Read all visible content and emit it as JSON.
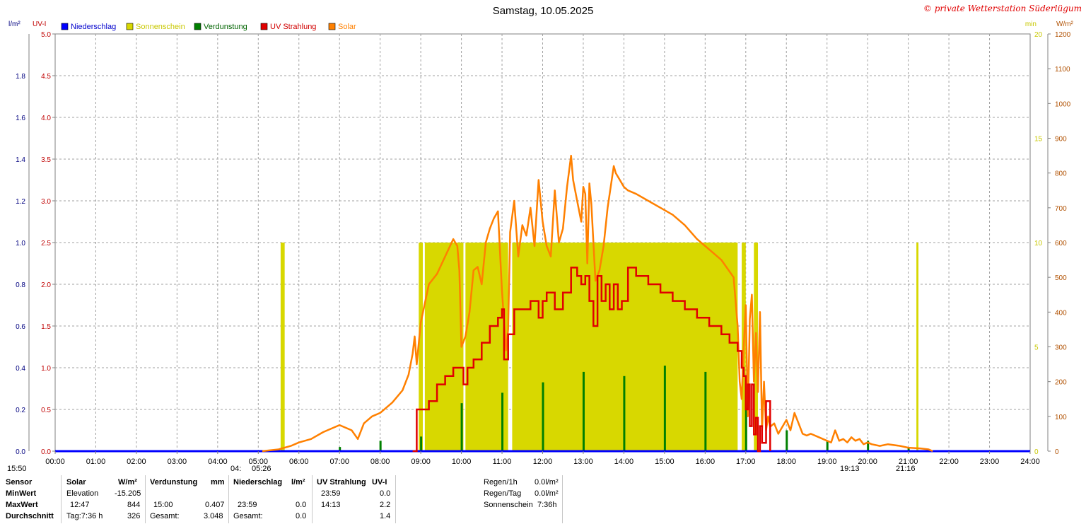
{
  "header": {
    "title": "Samstag, 10.05.2025",
    "copyright": "© private Wetterstation Süderlügum",
    "left_unit_1": "l/m²",
    "left_unit_2": "UV-I",
    "right_unit_1": "min",
    "right_unit_2": "W/m²"
  },
  "legend": [
    {
      "label": "Niederschlag",
      "color": "#0000ff",
      "text_color": "#0000cc"
    },
    {
      "label": "Sonnenschein",
      "color": "#d8d800",
      "text_color": "#c8c800"
    },
    {
      "label": "Verdunstung",
      "color": "#008000",
      "text_color": "#006400"
    },
    {
      "label": "UV Strahlung",
      "color": "#e00000",
      "text_color": "#d00000"
    },
    {
      "label": "Solar",
      "color": "#ff8000",
      "text_color": "#ff8000"
    }
  ],
  "colors": {
    "rain": "#0000ff",
    "sun": "#d8d800",
    "evap": "#008000",
    "uv": "#e00000",
    "solar": "#ff8000",
    "grid": "#a0a0a0",
    "rain_axis": "#000080",
    "uv_axis": "#c00000",
    "min_axis": "#c8c800",
    "solar_axis": "#b05000"
  },
  "chart_data": {
    "type": "line",
    "x_unit": "hour of day",
    "xlim": [
      0,
      24
    ],
    "x_ticks": [
      "00:00",
      "01:00",
      "02:00",
      "03:00",
      "04:00",
      "05:00",
      "06:00",
      "07:00",
      "08:00",
      "09:00",
      "10:00",
      "11:00",
      "12:00",
      "13:00",
      "14:00",
      "15:00",
      "16:00",
      "17:00",
      "18:00",
      "19:00",
      "20:00",
      "21:00",
      "22:00",
      "23:00",
      "24:00"
    ],
    "axes": {
      "rain": {
        "unit": "l/m²",
        "range": [
          0,
          2.0
        ],
        "ticks": [
          "0.0",
          "0.2",
          "0.4",
          "0.6",
          "0.8",
          "1.0",
          "1.2",
          "1.4",
          "1.6",
          "1.8"
        ]
      },
      "uv": {
        "unit": "UV-I",
        "range": [
          0,
          5.0
        ],
        "ticks": [
          "0.0",
          "0.5",
          "1.0",
          "1.5",
          "2.0",
          "2.5",
          "3.0",
          "3.5",
          "4.0",
          "4.5",
          "5.0"
        ]
      },
      "sunshine": {
        "unit": "min",
        "range": [
          0,
          20
        ],
        "ticks": [
          "0",
          "5",
          "10",
          "15",
          "20"
        ]
      },
      "solar": {
        "unit": "W/m²",
        "range": [
          0,
          1200
        ],
        "ticks": [
          "0",
          "100",
          "200",
          "300",
          "400",
          "500",
          "600",
          "700",
          "800",
          "900",
          "1000",
          "1100",
          "1200"
        ]
      }
    },
    "grid": true,
    "legend_position": "top-left",
    "series": [
      {
        "name": "Solar",
        "axis": "solar",
        "x": [
          5.1,
          5.5,
          5.8,
          6.0,
          6.3,
          6.6,
          7.0,
          7.3,
          7.45,
          7.6,
          7.8,
          8.0,
          8.3,
          8.55,
          8.7,
          8.8,
          8.85,
          8.9,
          9.0,
          9.2,
          9.4,
          9.6,
          9.8,
          9.9,
          9.95,
          10.0,
          10.1,
          10.2,
          10.3,
          10.4,
          10.5,
          10.6,
          10.7,
          10.8,
          10.9,
          11.0,
          11.1,
          11.15,
          11.2,
          11.3,
          11.4,
          11.5,
          11.6,
          11.7,
          11.8,
          11.9,
          12.0,
          12.1,
          12.2,
          12.3,
          12.4,
          12.5,
          12.6,
          12.7,
          12.75,
          12.85,
          12.95,
          13.0,
          13.05,
          13.1,
          13.15,
          13.2,
          13.3,
          13.4,
          13.5,
          13.6,
          13.7,
          13.75,
          13.8,
          13.85,
          13.9,
          13.95,
          14.0,
          14.1,
          14.3,
          14.6,
          14.9,
          15.2,
          15.5,
          15.8,
          16.1,
          16.4,
          16.7,
          16.8,
          16.85,
          16.9,
          16.95,
          17.0,
          17.05,
          17.1,
          17.15,
          17.2,
          17.25,
          17.3,
          17.35,
          17.4,
          17.45,
          17.5,
          17.55,
          17.6,
          17.7,
          17.8,
          17.9,
          18.0,
          18.1,
          18.2,
          18.3,
          18.4,
          18.5,
          18.6,
          18.8,
          19.0,
          19.1,
          19.2,
          19.3,
          19.4,
          19.5,
          19.6,
          19.7,
          19.8,
          19.9,
          20.0,
          20.1,
          20.3,
          20.5,
          20.8,
          21.0,
          21.3,
          21.5,
          21.6
        ],
        "y": [
          0,
          5,
          15,
          25,
          35,
          55,
          75,
          60,
          35,
          80,
          100,
          110,
          140,
          175,
          220,
          280,
          330,
          250,
          370,
          480,
          510,
          560,
          610,
          590,
          520,
          300,
          330,
          400,
          520,
          530,
          480,
          600,
          640,
          670,
          690,
          460,
          290,
          350,
          630,
          720,
          560,
          650,
          620,
          700,
          590,
          780,
          660,
          590,
          560,
          750,
          600,
          640,
          760,
          850,
          780,
          720,
          660,
          760,
          740,
          540,
          770,
          710,
          490,
          520,
          590,
          700,
          780,
          820,
          800,
          790,
          780,
          770,
          760,
          750,
          740,
          720,
          700,
          680,
          650,
          610,
          580,
          550,
          500,
          360,
          200,
          150,
          300,
          420,
          100,
          380,
          450,
          200,
          340,
          170,
          400,
          60,
          200,
          60,
          100,
          70,
          80,
          50,
          70,
          90,
          60,
          110,
          80,
          50,
          45,
          50,
          40,
          30,
          25,
          60,
          30,
          35,
          25,
          40,
          30,
          35,
          20,
          25,
          20,
          15,
          20,
          15,
          10,
          8,
          5,
          0
        ]
      },
      {
        "name": "UV Strahlung",
        "axis": "uv",
        "x": [
          8.8,
          8.9,
          9.0,
          9.2,
          9.4,
          9.6,
          9.8,
          9.95,
          10.05,
          10.15,
          10.3,
          10.5,
          10.7,
          10.9,
          11.0,
          11.05,
          11.15,
          11.3,
          11.5,
          11.7,
          11.9,
          12.0,
          12.1,
          12.3,
          12.5,
          12.7,
          12.85,
          12.95,
          13.05,
          13.15,
          13.25,
          13.35,
          13.45,
          13.55,
          13.65,
          13.75,
          13.85,
          13.95,
          14.1,
          14.3,
          14.6,
          14.9,
          15.2,
          15.5,
          15.8,
          16.1,
          16.4,
          16.6,
          16.8,
          16.9,
          16.95,
          17.0,
          17.05,
          17.1,
          17.15,
          17.2,
          17.25,
          17.3,
          17.35,
          17.4,
          17.5,
          17.6
        ],
        "y": [
          0,
          0.5,
          0.5,
          0.6,
          0.8,
          0.9,
          1.0,
          1.0,
          0.8,
          1.0,
          1.1,
          1.3,
          1.5,
          1.6,
          1.7,
          1.1,
          1.4,
          1.7,
          1.7,
          1.8,
          1.6,
          1.8,
          1.9,
          1.7,
          1.9,
          2.2,
          2.1,
          2.0,
          2.1,
          1.8,
          1.5,
          2.1,
          1.8,
          2.0,
          1.7,
          2.0,
          1.7,
          1.8,
          2.2,
          2.1,
          2.0,
          1.9,
          1.8,
          1.7,
          1.6,
          1.5,
          1.4,
          1.3,
          1.2,
          1.0,
          0.9,
          0.5,
          0.8,
          0.3,
          0.8,
          0.2,
          0.4,
          0.0,
          0.3,
          0.1,
          0.6,
          0.0
        ]
      },
      {
        "name": "Sonnenschein",
        "axis": "sunshine",
        "intervals": [
          [
            5.55,
            5.65
          ],
          [
            8.95,
            9.05
          ],
          [
            9.1,
            10.05
          ],
          [
            10.1,
            11.15
          ],
          [
            11.25,
            16.8
          ],
          [
            16.9,
            17.0
          ],
          [
            17.2,
            17.3
          ],
          [
            21.2,
            21.25
          ]
        ],
        "value": 10
      },
      {
        "name": "Verdunstung",
        "axis": "rain",
        "x": [
          7.0,
          8.0,
          9.0,
          10.0,
          11.0,
          12.0,
          13.0,
          14.0,
          15.0,
          16.0,
          17.0,
          18.0,
          19.0,
          20.0,
          21.0
        ],
        "y": [
          0.02,
          0.05,
          0.07,
          0.23,
          0.28,
          0.33,
          0.38,
          0.36,
          0.41,
          0.38,
          0.32,
          0.1,
          0.05,
          0.05,
          0.02
        ]
      },
      {
        "name": "Niederschlag",
        "axis": "rain",
        "x": [
          0,
          24
        ],
        "y": [
          0,
          0
        ]
      }
    ]
  },
  "below_axis": {
    "sunrise_left": "15:50",
    "sun_marker_1": "04:",
    "sun_marker_2": "05:26",
    "sunset_1": "19:13",
    "sunset_2": "21:16"
  },
  "stats": {
    "labels": [
      "Sensor",
      "MinWert",
      "MaxWert",
      "Durchschnitt"
    ],
    "solar": {
      "header": "Solar",
      "unit": "W/m²",
      "min_time": "Elevation",
      "min_val": "-15.205",
      "max_time": "12:47",
      "max_val": "844",
      "avg_time": "Tag:7:36 h",
      "avg_val": "326"
    },
    "evap": {
      "header": "Verdunstung",
      "unit": "mm",
      "max_time": "15:00",
      "max_val": "0.407",
      "avg_time": "Gesamt:",
      "avg_val": "3.048"
    },
    "rain": {
      "header": "Niederschlag",
      "unit": "l/m²",
      "max_time": "23:59",
      "max_val": "0.0",
      "avg_time": "Gesamt:",
      "avg_val": "0.0"
    },
    "uv": {
      "header": "UV Strahlung",
      "unit": "UV-I",
      "min_time": "23:59",
      "min_val": "0.0",
      "max_time": "14:13",
      "max_val": "2.2",
      "avg_val": "1.4"
    },
    "summary": {
      "r1_label": "Regen/1h",
      "r1_val": "0.0l/m²",
      "r2_label": "Regen/Tag",
      "r2_val": "0.0l/m²",
      "r3_label": "Sonnenschein",
      "r3_val": "7:36h"
    }
  }
}
